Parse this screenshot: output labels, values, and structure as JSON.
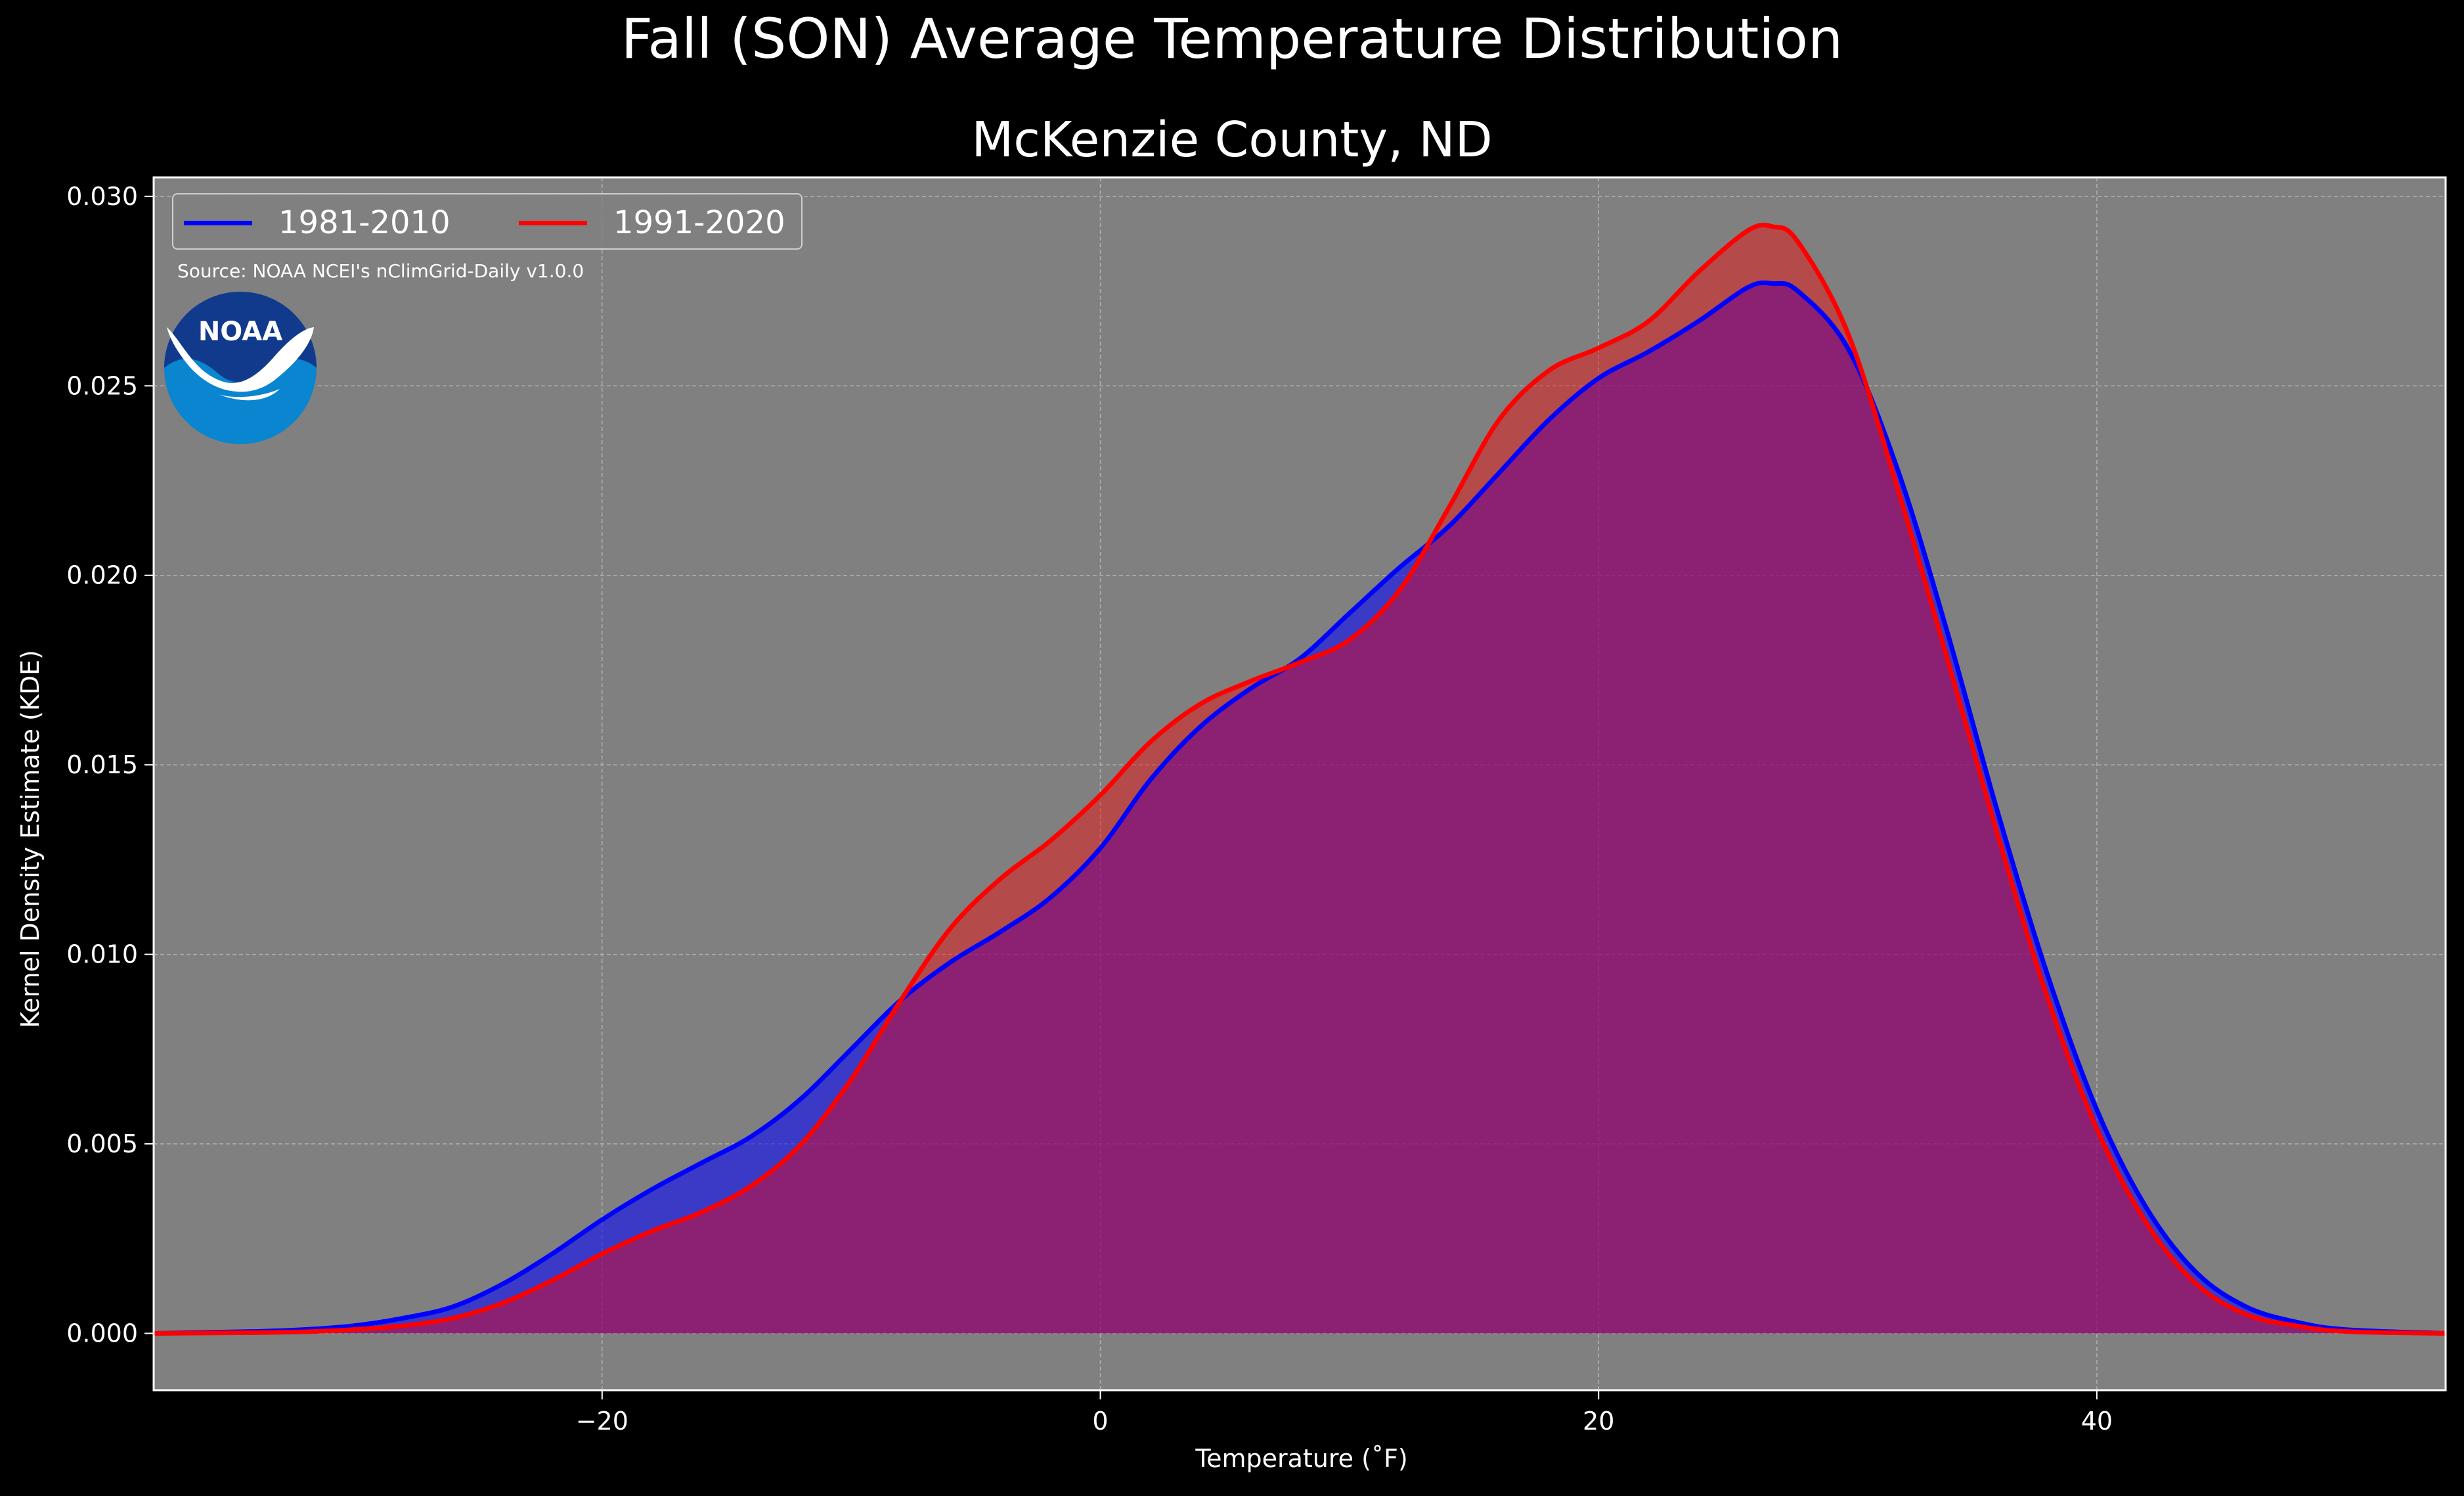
{
  "colors": {
    "background": "#000000",
    "plot_background": "#808080",
    "series_1981_2010": "#0000ff",
    "series_1991_2020": "#ff0000",
    "noaa_dark": "#123a8c",
    "noaa_light": "#0a85cf"
  },
  "logo": {
    "text": "NOAA"
  },
  "chart_data": {
    "type": "area",
    "title": "Fall (SON) Average Temperature Distribution",
    "subtitle": "McKenzie County, ND",
    "xlabel": "Temperature ($^\\circ$F)",
    "ylabel": "Kernel Density Estimate (KDE)",
    "xlabel_display": "Temperature (˚F)",
    "source": "Source: NOAA NCEI's nClimGrid-Daily v1.0.0",
    "xlim": [
      -38,
      54
    ],
    "ylim": [
      -0.0015,
      0.0305
    ],
    "xticks": [
      -20,
      0,
      20,
      40
    ],
    "xtick_labels": [
      "−20",
      "0",
      "20",
      "40"
    ],
    "yticks": [
      0.0,
      0.005,
      0.01,
      0.015,
      0.02,
      0.025,
      0.03
    ],
    "ytick_labels": [
      "0.000",
      "0.005",
      "0.010",
      "0.015",
      "0.020",
      "0.025",
      "0.030"
    ],
    "grid": true,
    "legend_position": "top-left",
    "series": [
      {
        "name": "1981-2010",
        "color": "#0000ff",
        "x": [
          -38,
          -34,
          -32,
          -30,
          -28,
          -26,
          -24,
          -22,
          -20,
          -18,
          -16,
          -14,
          -12,
          -10,
          -8,
          -6,
          -4,
          -2,
          0,
          2,
          4,
          6,
          8,
          10,
          12,
          14,
          16,
          18,
          20,
          22,
          24,
          26,
          27,
          28,
          30,
          32,
          34,
          36,
          38,
          40,
          42,
          44,
          46,
          48,
          50,
          54
        ],
        "y": [
          0.0,
          5e-05,
          0.0001,
          0.0002,
          0.0004,
          0.0007,
          0.0013,
          0.0021,
          0.003,
          0.0038,
          0.0045,
          0.0052,
          0.0062,
          0.0075,
          0.0088,
          0.0098,
          0.0106,
          0.0115,
          0.0128,
          0.0146,
          0.016,
          0.017,
          0.0178,
          0.019,
          0.0202,
          0.0213,
          0.0227,
          0.0241,
          0.0252,
          0.0259,
          0.0267,
          0.0276,
          0.0277,
          0.0275,
          0.026,
          0.0228,
          0.0185,
          0.0138,
          0.0095,
          0.0059,
          0.0033,
          0.0016,
          0.0007,
          0.0003,
          0.0001,
          0.0
        ]
      },
      {
        "name": "1991-2020",
        "color": "#ff0000",
        "x": [
          -38,
          -34,
          -32,
          -30,
          -28,
          -26,
          -24,
          -22,
          -20,
          -18,
          -16,
          -14,
          -12,
          -10,
          -8,
          -6,
          -4,
          -2,
          0,
          2,
          4,
          6,
          8,
          10,
          12,
          14,
          16,
          18,
          20,
          22,
          24,
          26,
          27,
          28,
          30,
          32,
          34,
          36,
          38,
          40,
          42,
          44,
          46,
          48,
          50,
          54
        ],
        "y": [
          0.0,
          2e-05,
          4e-05,
          0.0001,
          0.0002,
          0.0004,
          0.0008,
          0.0014,
          0.0021,
          0.0027,
          0.0032,
          0.0039,
          0.005,
          0.0067,
          0.0088,
          0.0107,
          0.012,
          0.013,
          0.0142,
          0.0156,
          0.0166,
          0.0172,
          0.0177,
          0.0183,
          0.0196,
          0.0218,
          0.0241,
          0.0254,
          0.026,
          0.0267,
          0.028,
          0.0291,
          0.0292,
          0.0288,
          0.0264,
          0.0223,
          0.0178,
          0.0132,
          0.0089,
          0.0054,
          0.0029,
          0.0013,
          0.0005,
          0.0002,
          5e-05,
          0.0
        ]
      }
    ]
  }
}
